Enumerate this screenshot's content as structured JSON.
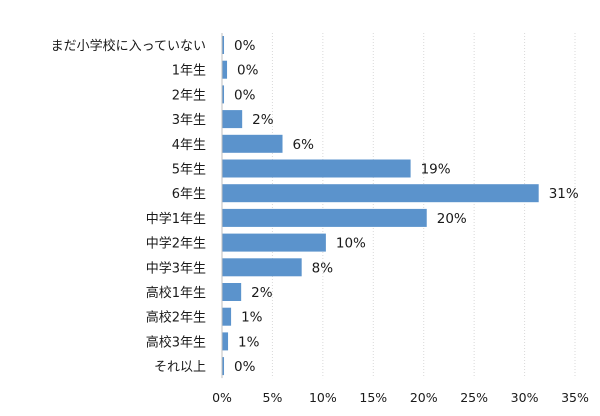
{
  "chart_data": {
    "type": "bar",
    "orientation": "horizontal",
    "categories": [
      "まだ小学校に入っていない",
      "1年生",
      "2年生",
      "3年生",
      "4年生",
      "5年生",
      "6年生",
      "中学1年生",
      "中学2年生",
      "中学3年生",
      "高校1年生",
      "高校2年生",
      "高校3年生",
      "それ以上"
    ],
    "values": [
      0.2,
      0.5,
      0.2,
      2.0,
      6.0,
      18.7,
      31.4,
      20.3,
      10.3,
      7.9,
      1.9,
      0.9,
      0.6,
      0.2
    ],
    "data_labels": [
      "0%",
      "0%",
      "0%",
      "2%",
      "6%",
      "19%",
      "31%",
      "20%",
      "10%",
      "8%",
      "2%",
      "1%",
      "1%",
      "0%"
    ],
    "x_ticks": [
      0,
      5,
      10,
      15,
      20,
      25,
      30,
      35
    ],
    "x_tick_labels": [
      "0%",
      "5%",
      "10%",
      "15%",
      "20%",
      "25%",
      "30%",
      "35%"
    ],
    "xlim": [
      0,
      35
    ],
    "title": "",
    "xlabel": "",
    "ylabel": "",
    "grid": "vertical-dotted",
    "legend": "none",
    "bar_color": "#5b93cc"
  }
}
